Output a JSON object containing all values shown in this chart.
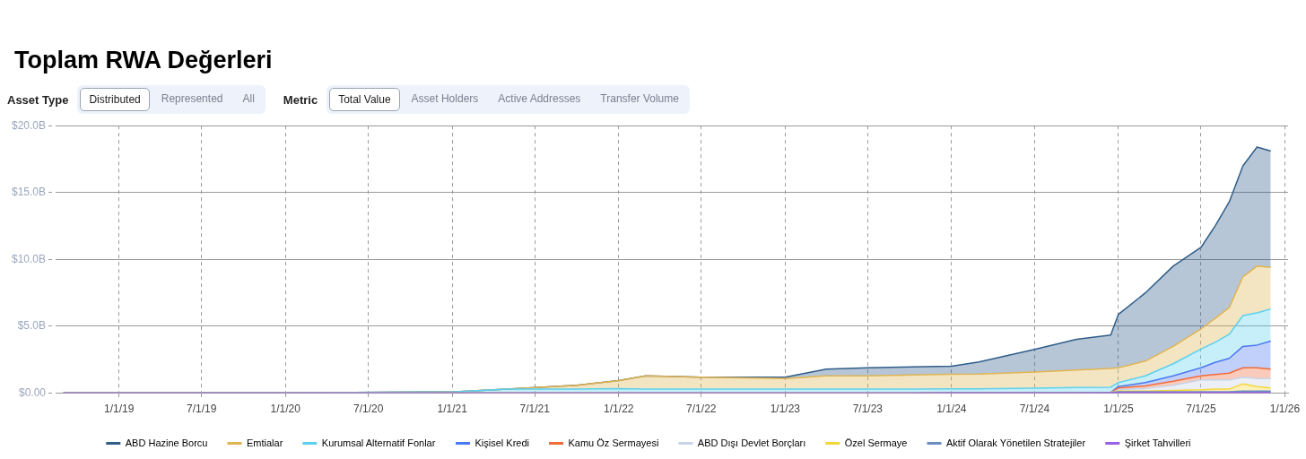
{
  "chart_data": {
    "type": "area",
    "title": "Toplam RWA Değerleri",
    "stacked": true,
    "annotations": [
      "Asset Type",
      "Distributed",
      "Represented",
      "All",
      "Metric",
      "Total Value",
      "Asset Holders",
      "Active Addresses",
      "Transfer Volume"
    ],
    "x": [
      "2018-09",
      "2019-06",
      "2020-06",
      "2021-01",
      "2021-05",
      "2021-10",
      "2022-01",
      "2022-03",
      "2022-07",
      "2023-01",
      "2023-04",
      "2023-07",
      "2024-01",
      "2024-03",
      "2024-07",
      "2024-10",
      "2024-12-15",
      "2025-01",
      "2025-03",
      "2025-05",
      "2025-07",
      "2025-08",
      "2025-09",
      "2025-10",
      "2025-11",
      "2025-12"
    ],
    "xlim": [
      "2018-08-15",
      "2026-01-08"
    ],
    "xticks": [
      {
        "value": "2019-01-01",
        "label": "1/1/19"
      },
      {
        "value": "2019-07-01",
        "label": "7/1/19"
      },
      {
        "value": "2020-01-01",
        "label": "1/1/20"
      },
      {
        "value": "2020-07-01",
        "label": "7/1/20"
      },
      {
        "value": "2021-01-01",
        "label": "1/1/21"
      },
      {
        "value": "2021-07-01",
        "label": "7/1/21"
      },
      {
        "value": "2022-01-01",
        "label": "1/1/22"
      },
      {
        "value": "2022-07-01",
        "label": "7/1/22"
      },
      {
        "value": "2023-01-01",
        "label": "1/1/23"
      },
      {
        "value": "2023-07-01",
        "label": "7/1/23"
      },
      {
        "value": "2024-01-01",
        "label": "1/1/24"
      },
      {
        "value": "2024-07-01",
        "label": "7/1/24"
      },
      {
        "value": "2025-01-01",
        "label": "1/1/25"
      },
      {
        "value": "2025-07-01",
        "label": "7/1/25"
      },
      {
        "value": "2026-01-01",
        "label": "1/1/26"
      }
    ],
    "ylim": [
      0,
      20
    ],
    "yticks": [
      {
        "value": 0,
        "label": "$0.00"
      },
      {
        "value": 5,
        "label": "$5.0B"
      },
      {
        "value": 10,
        "label": "$10.0B"
      },
      {
        "value": 15,
        "label": "$15.0B"
      },
      {
        "value": 20,
        "label": "$20.0B"
      }
    ],
    "grid": true,
    "legend": "bottom",
    "marker": "none",
    "line_style": "solid",
    "series": [
      {
        "name": "Şirket Tahvilleri",
        "color": "#9b5ee8",
        "values": [
          0,
          0,
          0,
          0,
          0,
          0,
          0,
          0,
          0,
          0,
          0,
          0,
          0.02,
          0.03,
          0.03,
          0.03,
          0.03,
          0.05,
          0.05,
          0.05,
          0.05,
          0.05,
          0.05,
          0.05,
          0.05,
          0.05
        ]
      },
      {
        "name": "Aktif Olarak Yönetilen Stratejiler",
        "color": "#6a8fbf",
        "values": [
          0,
          0,
          0,
          0,
          0,
          0,
          0,
          0,
          0,
          0,
          0,
          0,
          0,
          0,
          0,
          0,
          0.02,
          0.05,
          0.05,
          0.05,
          0.05,
          0.05,
          0.05,
          0.1,
          0.1,
          0.1
        ]
      },
      {
        "name": "Özel Sermaye",
        "color": "#f5d63a",
        "values": [
          0,
          0,
          0,
          0,
          0,
          0,
          0,
          0,
          0,
          0,
          0,
          0,
          0,
          0,
          0,
          0,
          0,
          0.05,
          0.05,
          0.1,
          0.15,
          0.2,
          0.2,
          0.55,
          0.35,
          0.25
        ]
      },
      {
        "name": "ABD Dışı Devlet Borçları",
        "color": "#c9d3e6",
        "values": [
          0,
          0,
          0,
          0,
          0,
          0,
          0,
          0,
          0,
          0,
          0,
          0,
          0,
          0,
          0,
          0,
          0,
          0.1,
          0.2,
          0.4,
          0.75,
          0.7,
          0.7,
          0.5,
          0.6,
          0.7
        ]
      },
      {
        "name": "Kamu Öz Sermayesi",
        "color": "#f26b3a",
        "values": [
          0,
          0,
          0,
          0,
          0,
          0,
          0,
          0,
          0,
          0,
          0,
          0,
          0,
          0,
          0,
          0,
          0,
          0.15,
          0.2,
          0.3,
          0.3,
          0.4,
          0.5,
          0.7,
          0.8,
          0.7
        ]
      },
      {
        "name": "Kişisel Kredi",
        "color": "#4a78f0",
        "values": [
          0,
          0,
          0,
          0,
          0,
          0,
          0,
          0,
          0,
          0,
          0,
          0,
          0,
          0,
          0,
          0,
          0,
          0.1,
          0.25,
          0.4,
          0.6,
          0.9,
          1.1,
          1.6,
          1.7,
          2.1
        ]
      },
      {
        "name": "Kurumsal Alternatif Fonlar",
        "color": "#5bd0ee",
        "values": [
          0.02,
          0.03,
          0.05,
          0.1,
          0.3,
          0.3,
          0.35,
          0.3,
          0.3,
          0.3,
          0.3,
          0.3,
          0.3,
          0.3,
          0.35,
          0.4,
          0.4,
          0.3,
          0.5,
          0.9,
          1.4,
          1.5,
          1.8,
          2.3,
          2.4,
          2.4
        ]
      },
      {
        "name": "Emtialar",
        "color": "#e0b450",
        "values": [
          0,
          0,
          0,
          0,
          0,
          0.3,
          0.6,
          1.0,
          0.9,
          0.8,
          1.0,
          1.0,
          1.1,
          1.1,
          1.2,
          1.3,
          1.4,
          1.1,
          1.1,
          1.3,
          1.5,
          1.8,
          2.0,
          2.9,
          3.5,
          3.1
        ]
      },
      {
        "name": "ABD Hazine Borcu",
        "color": "#2f5d8a",
        "values": [
          0,
          0,
          0,
          0,
          0,
          0,
          0,
          0,
          0,
          0.1,
          0.5,
          0.6,
          0.6,
          0.9,
          1.7,
          2.3,
          2.5,
          4.0,
          5.1,
          6.0,
          6.1,
          6.9,
          7.9,
          8.3,
          8.9,
          8.7
        ]
      }
    ]
  }
}
